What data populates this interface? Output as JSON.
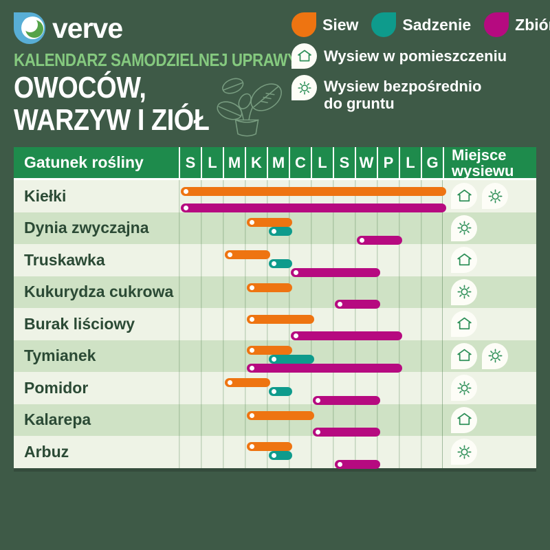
{
  "brand": {
    "name": "verve"
  },
  "header": {
    "subtitle": "KALENDARZ SAMODZIELNEJ UPRAWY",
    "title_line1": "OWOCÓW,",
    "title_line2": "WARZYW I ZIÓŁ"
  },
  "legend": {
    "indoor_label": "Wysiew w pomieszczeniu",
    "outdoor_label": "Wysiew bezpośrednio do gruntu"
  },
  "colors": {
    "background": "#3e5a47",
    "header_green": "#1e8b4c",
    "subtitle_green": "#85c97f",
    "row_light": "#eef3e6",
    "row_dark": "#cfe2c5",
    "grid_line": "rgba(66,115,66,0.25)",
    "label_text": "#2b4a35",
    "icon_stroke": "#2f9059",
    "logo_blue": "#58aed6",
    "logo_green": "#55a349"
  },
  "chart_data": {
    "type": "bar",
    "subtype": "gantt-planting-calendar",
    "title": "KALENDARZ SAMODZIELNEJ UPRAWY OWOCÓW, WARZYW I ZIÓŁ",
    "xlabel_header": "Gatunek rośliny",
    "place_header_line1": "Miejsce",
    "place_header_line2": "wysiewu",
    "month_labels": [
      "S",
      "L",
      "M",
      "K",
      "M",
      "C",
      "L",
      "S",
      "W",
      "P",
      "L",
      "G"
    ],
    "x_range_months": [
      1,
      12
    ],
    "legend_position": "top-right",
    "grid": true,
    "activities": [
      {
        "key": "siew",
        "label": "Siew",
        "color": "#ee7411"
      },
      {
        "key": "sadzenie",
        "label": "Sadzenie",
        "color": "#0e9b8c"
      },
      {
        "key": "zbior",
        "label": "Zbiór",
        "color": "#b60a80"
      }
    ],
    "rows": [
      {
        "name": "Kiełki",
        "bars": [
          {
            "type": "siew",
            "start": 1,
            "end": 12
          },
          {
            "type": "zbior",
            "start": 1,
            "end": 12
          }
        ],
        "icons": [
          "indoor",
          "outdoor"
        ]
      },
      {
        "name": "Dynia zwyczajna",
        "bars": [
          {
            "type": "siew",
            "start": 4,
            "end": 5
          },
          {
            "type": "sadzenie",
            "start": 5,
            "end": 5
          },
          {
            "type": "zbior",
            "start": 9,
            "end": 10
          }
        ],
        "icons": [
          "outdoor"
        ]
      },
      {
        "name": "Truskawka",
        "bars": [
          {
            "type": "siew",
            "start": 3,
            "end": 4
          },
          {
            "type": "sadzenie",
            "start": 5,
            "end": 5
          },
          {
            "type": "zbior",
            "start": 6,
            "end": 9
          }
        ],
        "icons": [
          "indoor"
        ]
      },
      {
        "name": "Kukurydza cukrowa",
        "bars": [
          {
            "type": "siew",
            "start": 4,
            "end": 5
          },
          {
            "type": "zbior",
            "start": 8,
            "end": 9
          }
        ],
        "icons": [
          "outdoor"
        ]
      },
      {
        "name": "Burak liściowy",
        "bars": [
          {
            "type": "siew",
            "start": 4,
            "end": 6
          },
          {
            "type": "zbior",
            "start": 6,
            "end": 10
          }
        ],
        "icons": [
          "indoor"
        ]
      },
      {
        "name": "Tymianek",
        "bars": [
          {
            "type": "siew",
            "start": 4,
            "end": 5
          },
          {
            "type": "sadzenie",
            "start": 5,
            "end": 6
          },
          {
            "type": "zbior",
            "start": 4,
            "end": 10
          }
        ],
        "icons": [
          "indoor",
          "outdoor"
        ]
      },
      {
        "name": "Pomidor",
        "bars": [
          {
            "type": "siew",
            "start": 3,
            "end": 4
          },
          {
            "type": "sadzenie",
            "start": 5,
            "end": 5
          },
          {
            "type": "zbior",
            "start": 7,
            "end": 9
          }
        ],
        "icons": [
          "outdoor"
        ]
      },
      {
        "name": "Kalarepa",
        "bars": [
          {
            "type": "siew",
            "start": 4,
            "end": 6
          },
          {
            "type": "zbior",
            "start": 7,
            "end": 9
          }
        ],
        "icons": [
          "indoor"
        ]
      },
      {
        "name": "Arbuz",
        "bars": [
          {
            "type": "siew",
            "start": 4,
            "end": 5
          },
          {
            "type": "sadzenie",
            "start": 5,
            "end": 5
          },
          {
            "type": "zbior",
            "start": 8,
            "end": 9
          }
        ],
        "icons": [
          "outdoor"
        ]
      }
    ]
  }
}
